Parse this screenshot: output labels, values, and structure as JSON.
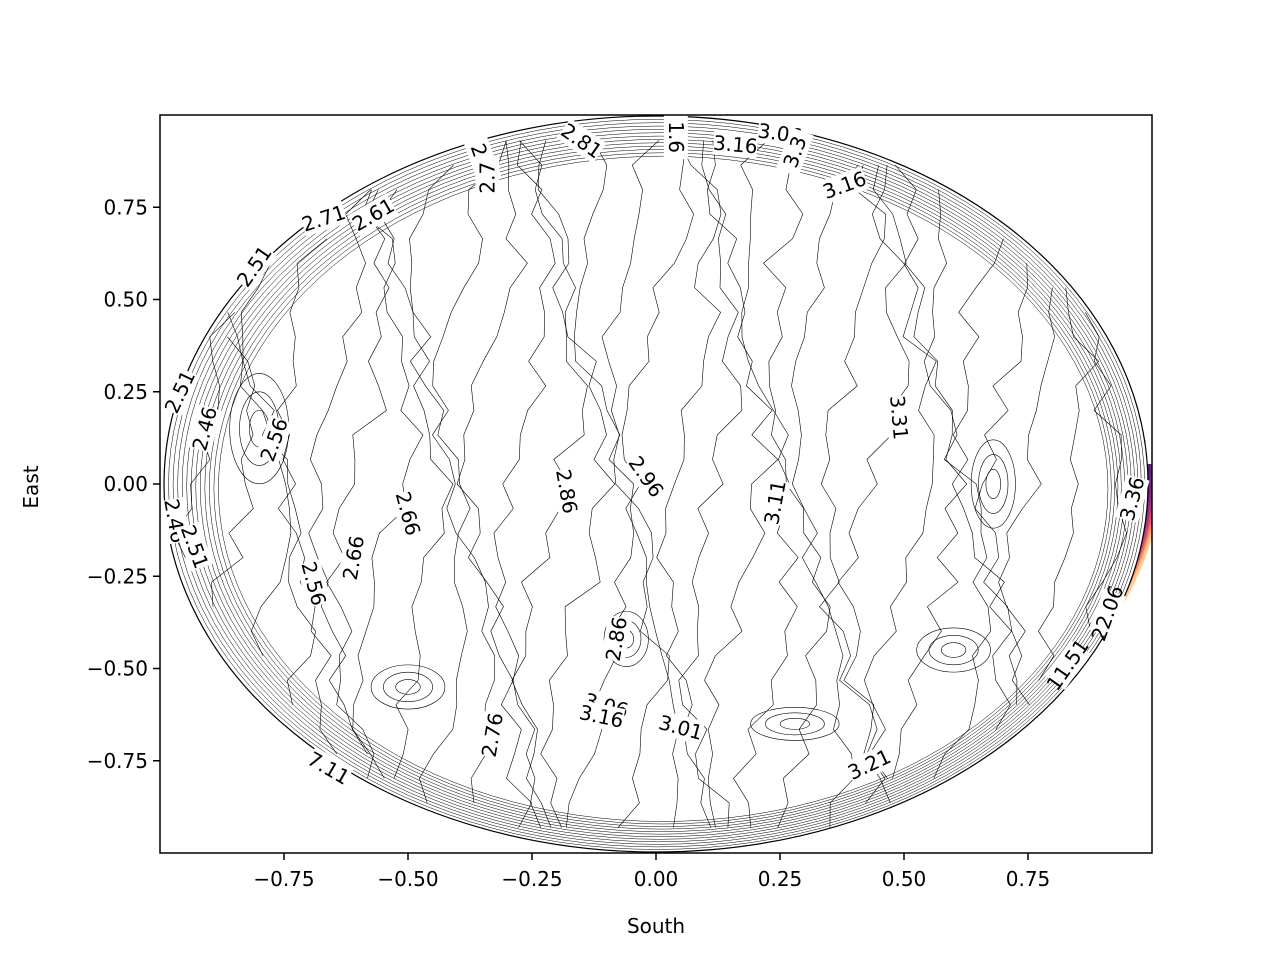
{
  "chart_data": {
    "type": "contour",
    "title": "",
    "xlabel": "South",
    "ylabel": "East",
    "xlim": [
      -1.0,
      1.0
    ],
    "ylim": [
      -1.0,
      1.0
    ],
    "x_ticks": [
      -0.75,
      -0.5,
      -0.25,
      0.0,
      0.25,
      0.5,
      0.75
    ],
    "x_tick_labels": [
      "−0.75",
      "−0.50",
      "−0.25",
      "0.00",
      "0.25",
      "0.50",
      "0.75"
    ],
    "y_ticks": [
      -0.75,
      -0.5,
      -0.25,
      0.0,
      0.25,
      0.5,
      0.75
    ],
    "y_tick_labels": [
      "−0.75",
      "−0.50",
      "−0.25",
      "0.00",
      "0.25",
      "0.50",
      "0.75"
    ],
    "grid": false,
    "colormap": "magma",
    "contour_line_color": "#000000",
    "domain_shape": "ellipse",
    "contour_labels": [
      {
        "text": "2.81",
        "x": -0.15,
        "y": 0.93,
        "angle": 35
      },
      {
        "text": "1.6",
        "x": 0.04,
        "y": 0.94,
        "angle": 90
      },
      {
        "text": "3.06",
        "x": 0.25,
        "y": 0.95,
        "angle": 8
      },
      {
        "text": "3.16",
        "x": 0.16,
        "y": 0.92,
        "angle": 5
      },
      {
        "text": "3.3",
        "x": 0.28,
        "y": 0.9,
        "angle": -70
      },
      {
        "text": "3.16",
        "x": 0.38,
        "y": 0.81,
        "angle": -20
      },
      {
        "text": "2.7",
        "x": -0.35,
        "y": 0.88,
        "angle": 70
      },
      {
        "text": "2.7",
        "x": -0.34,
        "y": 0.83,
        "angle": -90
      },
      {
        "text": "2.71",
        "x": -0.67,
        "y": 0.72,
        "angle": -18
      },
      {
        "text": "2.61",
        "x": -0.57,
        "y": 0.73,
        "angle": -30
      },
      {
        "text": "2.51",
        "x": -0.81,
        "y": 0.59,
        "angle": -55
      },
      {
        "text": "2.51",
        "x": -0.96,
        "y": 0.25,
        "angle": -65
      },
      {
        "text": "2.46",
        "x": -0.91,
        "y": 0.15,
        "angle": -75
      },
      {
        "text": "2.56",
        "x": -0.77,
        "y": 0.12,
        "angle": -70
      },
      {
        "text": "2.46",
        "x": -0.97,
        "y": -0.1,
        "angle": 80
      },
      {
        "text": "2.51",
        "x": -0.93,
        "y": -0.17,
        "angle": 70
      },
      {
        "text": "2.66",
        "x": -0.5,
        "y": -0.08,
        "angle": 75
      },
      {
        "text": "2.66",
        "x": -0.61,
        "y": -0.2,
        "angle": -80
      },
      {
        "text": "2.56",
        "x": -0.69,
        "y": -0.27,
        "angle": 75
      },
      {
        "text": "2.86",
        "x": -0.18,
        "y": -0.02,
        "angle": 80
      },
      {
        "text": "2.96",
        "x": -0.02,
        "y": 0.02,
        "angle": 55
      },
      {
        "text": "3.11",
        "x": 0.24,
        "y": -0.05,
        "angle": -80
      },
      {
        "text": "3.31",
        "x": 0.49,
        "y": 0.18,
        "angle": 85
      },
      {
        "text": "3.36",
        "x": 0.96,
        "y": -0.04,
        "angle": -75
      },
      {
        "text": "2.86",
        "x": -0.08,
        "y": -0.42,
        "angle": -80
      },
      {
        "text": "3.06",
        "x": -0.1,
        "y": -0.6,
        "angle": 15
      },
      {
        "text": "3.16",
        "x": -0.11,
        "y": -0.63,
        "angle": 12
      },
      {
        "text": "3.01",
        "x": 0.05,
        "y": -0.66,
        "angle": 15
      },
      {
        "text": "2.76",
        "x": -0.33,
        "y": -0.68,
        "angle": -80
      },
      {
        "text": "3.21",
        "x": 0.43,
        "y": -0.76,
        "angle": -25
      },
      {
        "text": "7.11",
        "x": -0.66,
        "y": -0.77,
        "angle": 30
      },
      {
        "text": "11.51",
        "x": 0.83,
        "y": -0.49,
        "angle": -55
      },
      {
        "text": "22.06",
        "x": 0.91,
        "y": -0.35,
        "angle": -70
      }
    ]
  }
}
